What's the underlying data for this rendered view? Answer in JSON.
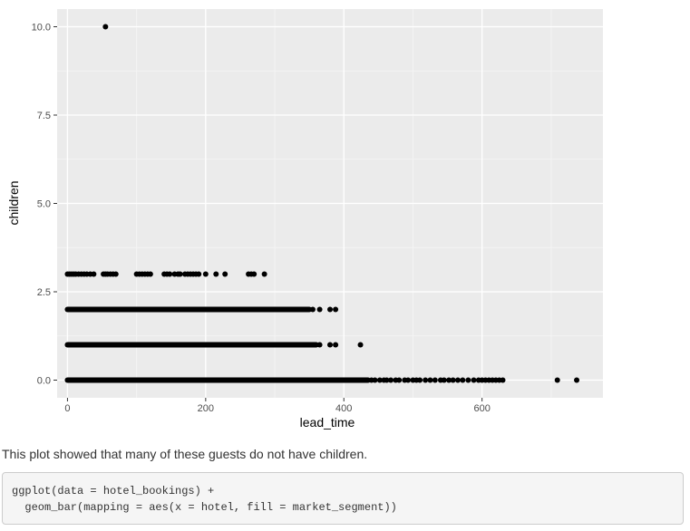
{
  "chart_data": {
    "type": "scatter",
    "xlabel": "lead_time",
    "ylabel": "children",
    "xlim": [
      -15,
      775
    ],
    "ylim": [
      -0.5,
      10.5
    ],
    "x_ticks": [
      0,
      200,
      400,
      600
    ],
    "y_ticks": [
      0.0,
      2.5,
      5.0,
      7.5,
      10.0
    ],
    "x_tick_labels": [
      "0",
      "200",
      "400",
      "600"
    ],
    "y_tick_labels": [
      "0.0",
      "2.5",
      "5.0",
      "7.5",
      "10.0"
    ],
    "grid": true,
    "point_color": "#000000",
    "panel_color": "#ebebeb",
    "rows": [
      {
        "y": 0,
        "dense_x": [
          0,
          435
        ],
        "extra_x": [
          440,
          445,
          452,
          458,
          462,
          468,
          475,
          480,
          488,
          493,
          500,
          505,
          510,
          518,
          525,
          532,
          540,
          545,
          552,
          558,
          565,
          572,
          580,
          588,
          595,
          600,
          605,
          610,
          615,
          620,
          625,
          630,
          709,
          737
        ]
      },
      {
        "y": 1,
        "dense_x": [
          0,
          360
        ],
        "extra_x": [
          365,
          380,
          388,
          424
        ]
      },
      {
        "y": 2,
        "dense_x": [
          0,
          350
        ],
        "extra_x": [
          355,
          365,
          380,
          388
        ]
      },
      {
        "y": 3,
        "dense_x": [],
        "extra_x": [
          0,
          3,
          6,
          9,
          12,
          16,
          20,
          24,
          28,
          33,
          38,
          52,
          55,
          58,
          62,
          66,
          70,
          100,
          104,
          108,
          112,
          116,
          120,
          140,
          144,
          148,
          155,
          160,
          163,
          170,
          174,
          178,
          182,
          186,
          190,
          200,
          215,
          228,
          262,
          266,
          270,
          285
        ]
      },
      {
        "y": 10,
        "dense_x": [],
        "extra_x": [
          55
        ]
      }
    ]
  },
  "caption": "This plot showed that many of these guests do not have children.",
  "code": {
    "lines": [
      "ggplot(data = hotel_bookings) +",
      "  geom_bar(mapping = aes(x = hotel, fill = market_segment))"
    ]
  }
}
